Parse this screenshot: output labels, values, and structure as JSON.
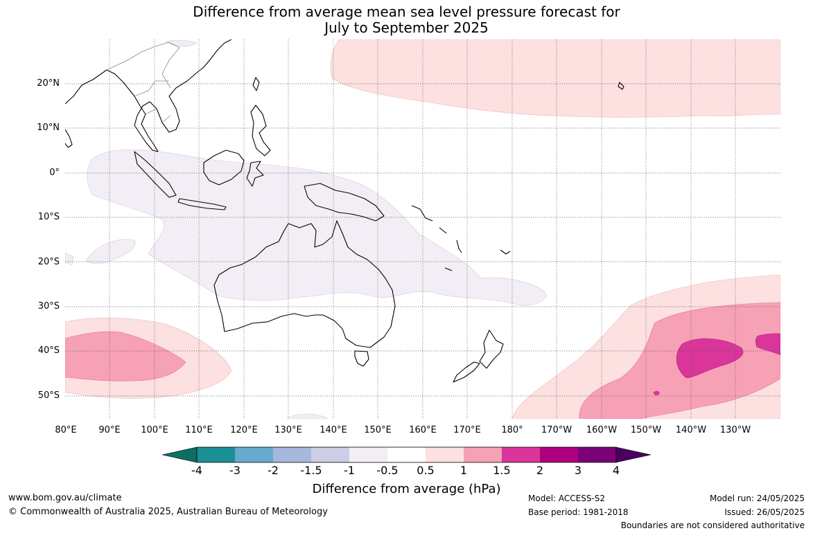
{
  "title_line1": "Difference from average mean sea level pressure forecast for",
  "title_line2": "July to September 2025",
  "lat_labels": [
    "20°N",
    "10°N",
    "0°",
    "10°S",
    "20°S",
    "30°S",
    "40°S",
    "50°S"
  ],
  "lon_labels": [
    "80°E",
    "90°E",
    "100°E",
    "110°E",
    "120°E",
    "130°E",
    "140°E",
    "150°E",
    "160°E",
    "170°E",
    "180°",
    "170°W",
    "160°W",
    "150°W",
    "140°W",
    "130°W"
  ],
  "colorbar": {
    "ticks": [
      "-4",
      "-3",
      "-2",
      "-1.5",
      "-1",
      "-0.5",
      "0.5",
      "1",
      "1.5",
      "2",
      "3",
      "4"
    ],
    "colors": [
      "#0e6e60",
      "#1a8f96",
      "#67a9cf",
      "#a6b9dc",
      "#cccee6",
      "#f3eef5",
      "#ffffff",
      "#fde0e0",
      "#f7a1b6",
      "#d9359b",
      "#ae0180",
      "#7a0177",
      "#4b0060"
    ],
    "label": "Difference from average (hPa)"
  },
  "footer": {
    "url": "www.bom.gov.au/climate",
    "copyright": "© Commonwealth of Australia 2025, Australian Bureau of Meteorology",
    "model": "Model: ACCESS-S2",
    "base_period": "Base period: 1981-2018",
    "model_run": "Model run: 24/05/2025",
    "issued": "Issued: 26/05/2025",
    "disclaimer": "Boundaries are not considered authoritative"
  }
}
